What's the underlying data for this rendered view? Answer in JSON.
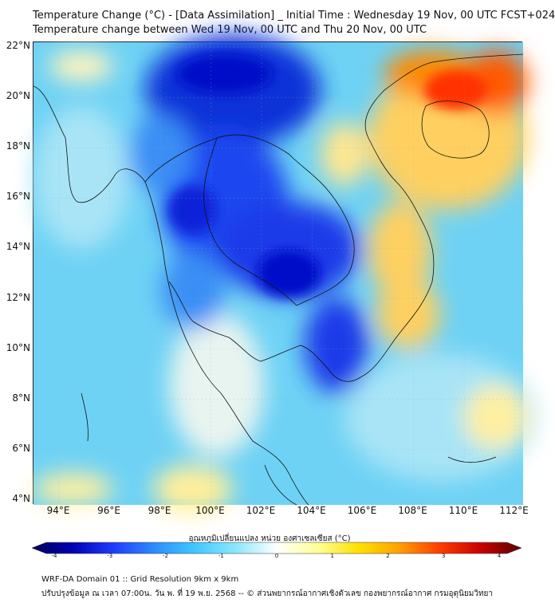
{
  "title": {
    "line1": "Temperature Change (°C) - [Data Assimilation] _ Initial Time : Wednesday 19 Nov, 00 UTC FCST+024",
    "line2": "Temperature change between Wed 19 Nov, 00 UTC and Thu 20 Nov, 00 UTC"
  },
  "map": {
    "lat_labels": [
      "22°N",
      "20°N",
      "18°N",
      "16°N",
      "14°N",
      "12°N",
      "10°N",
      "8°N",
      "6°N",
      "4°N"
    ],
    "lon_labels": [
      "94°E",
      "96°E",
      "98°E",
      "100°E",
      "102°E",
      "104°E",
      "106°E",
      "108°E",
      "110°E",
      "112°E"
    ]
  },
  "colorbar": {
    "title": "อุณหภูมิเปลี่ยนแปลง หน่วย องศาเซลเซียส (°C)",
    "ticks": [
      "-4",
      "-3",
      "-2",
      "-1",
      "0",
      "1",
      "2",
      "3",
      "4"
    ],
    "colors": [
      "#00005a",
      "#0000b4",
      "#1e3cff",
      "#2d8cff",
      "#41c8ff",
      "#8ce6ff",
      "#ffffff",
      "#ffff96",
      "#ffe100",
      "#ffa000",
      "#ff3c00",
      "#c80000",
      "#5a0000"
    ]
  },
  "footer": {
    "line1": "WRF-DA Domain 01 :: Grid Resolution 9km x 9km",
    "line2": "ปรับปรุงข้อมูล ณ เวลา 07:00น. วัน พ. ที่ 19 พ.ย. 2568 -- © ส่วนพยากรณ์อากาศเชิงตัวเลข กองพยากรณ์อากาศ กรมอุตุนิยมวิทยา"
  }
}
